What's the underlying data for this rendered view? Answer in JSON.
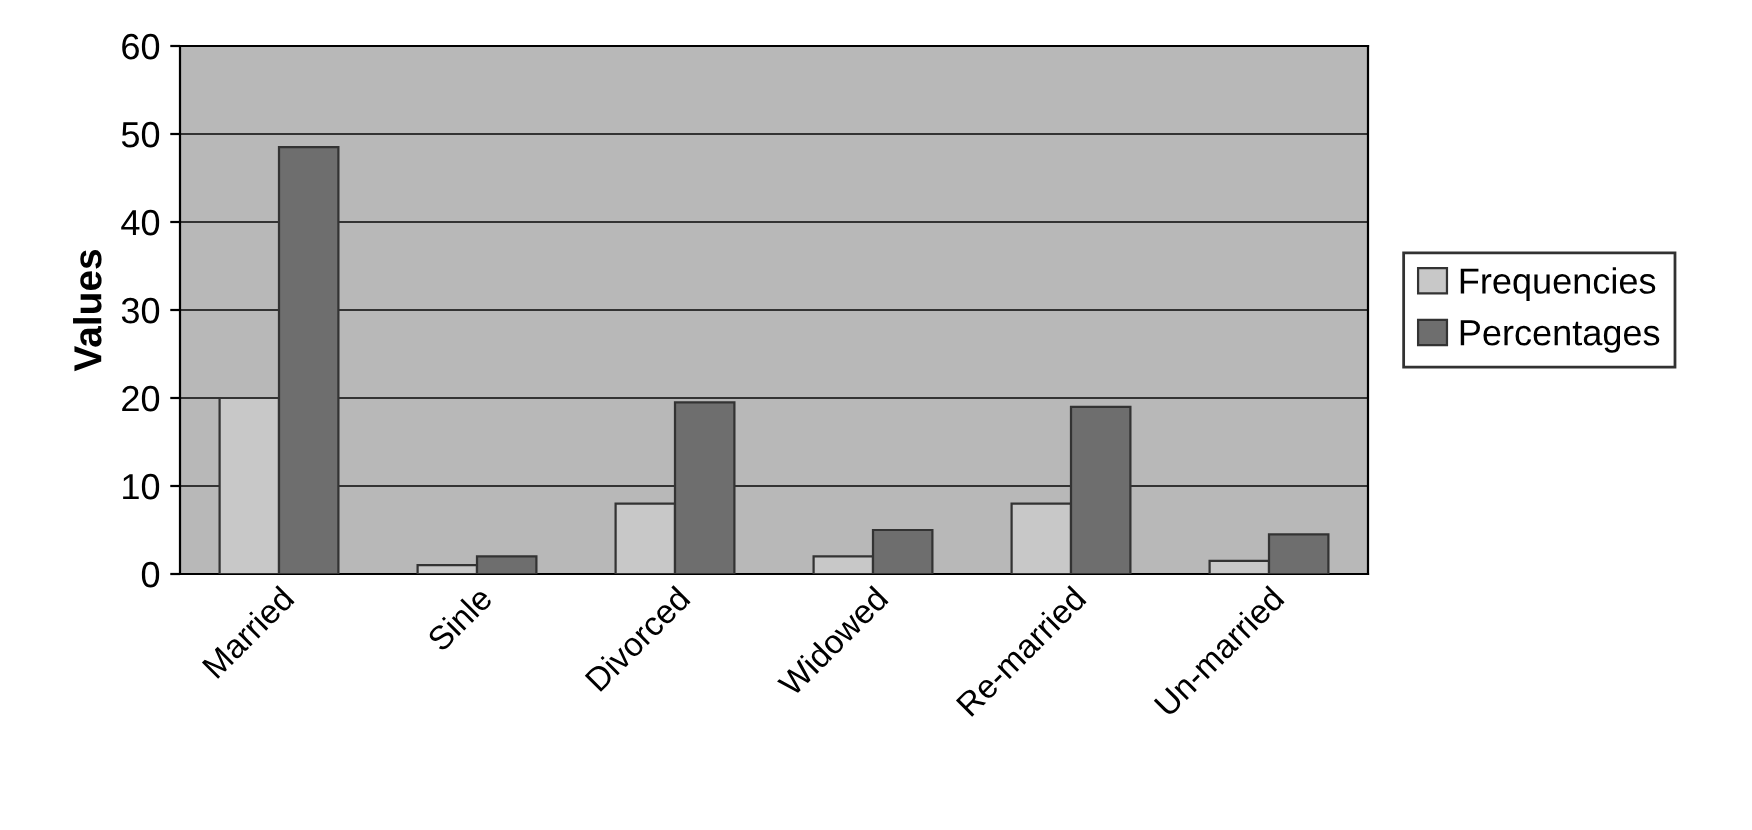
{
  "chart_data": {
    "type": "bar",
    "ylabel": "Values",
    "categories": [
      "Married",
      "Sinle",
      "Divorced",
      "Widowed",
      "Re-married",
      "Un-married"
    ],
    "series": [
      {
        "name": "Frequencies",
        "color": "#c8c8c8",
        "values": [
          20,
          1,
          8,
          2,
          8,
          1.5
        ]
      },
      {
        "name": "Percentages",
        "color": "#6e6e6e",
        "values": [
          48.5,
          2,
          19.5,
          5,
          19,
          4.5
        ]
      }
    ],
    "ylim": [
      0,
      60
    ],
    "yticks": [
      0,
      10,
      20,
      30,
      40,
      50,
      60
    ],
    "grid": "y",
    "legend": "right"
  }
}
